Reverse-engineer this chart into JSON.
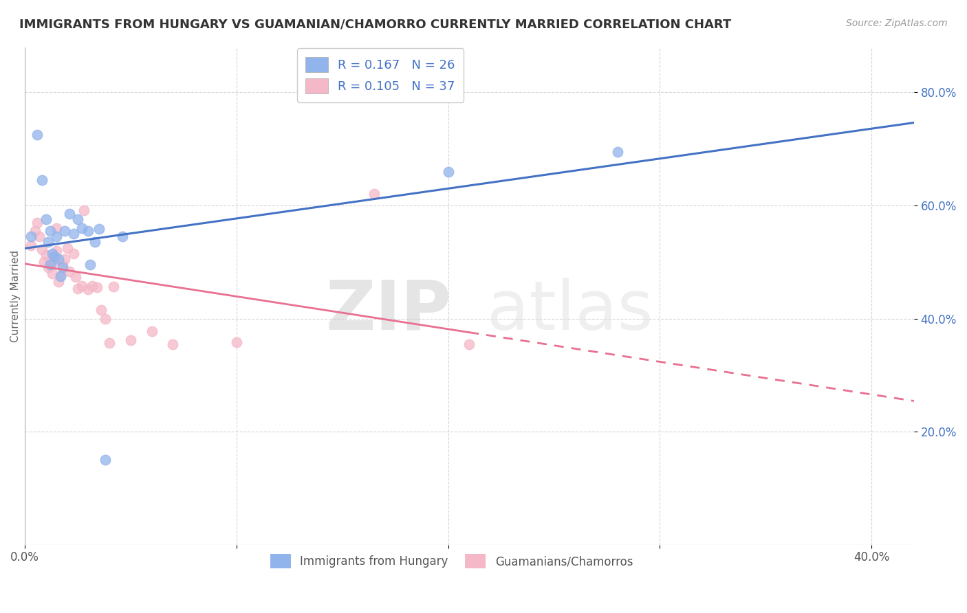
{
  "title": "IMMIGRANTS FROM HUNGARY VS GUAMANIAN/CHAMORRO CURRENTLY MARRIED CORRELATION CHART",
  "source": "Source: ZipAtlas.com",
  "ylabel": "Currently Married",
  "xlim": [
    0.0,
    0.42
  ],
  "ylim": [
    0.0,
    0.88
  ],
  "x_tick_labels": [
    "0.0%",
    "",
    "",
    "",
    "40.0%"
  ],
  "x_tick_values": [
    0.0,
    0.1,
    0.2,
    0.3,
    0.4
  ],
  "y_tick_labels": [
    "20.0%",
    "40.0%",
    "60.0%",
    "80.0%"
  ],
  "y_tick_values": [
    0.2,
    0.4,
    0.6,
    0.8
  ],
  "blue_color": "#92B4EC",
  "pink_color": "#F4B8C8",
  "blue_line_color": "#4472C4",
  "pink_line_color": "#E87090",
  "blue_scatter": [
    [
      0.003,
      0.545
    ],
    [
      0.006,
      0.725
    ],
    [
      0.008,
      0.645
    ],
    [
      0.01,
      0.575
    ],
    [
      0.011,
      0.535
    ],
    [
      0.012,
      0.555
    ],
    [
      0.012,
      0.495
    ],
    [
      0.013,
      0.515
    ],
    [
      0.014,
      0.51
    ],
    [
      0.015,
      0.545
    ],
    [
      0.016,
      0.505
    ],
    [
      0.017,
      0.475
    ],
    [
      0.018,
      0.49
    ],
    [
      0.019,
      0.555
    ],
    [
      0.021,
      0.585
    ],
    [
      0.023,
      0.55
    ],
    [
      0.025,
      0.575
    ],
    [
      0.027,
      0.56
    ],
    [
      0.03,
      0.555
    ],
    [
      0.031,
      0.495
    ],
    [
      0.033,
      0.535
    ],
    [
      0.035,
      0.558
    ],
    [
      0.038,
      0.15
    ],
    [
      0.046,
      0.545
    ],
    [
      0.2,
      0.66
    ],
    [
      0.28,
      0.695
    ]
  ],
  "pink_scatter": [
    [
      0.003,
      0.53
    ],
    [
      0.005,
      0.555
    ],
    [
      0.006,
      0.57
    ],
    [
      0.007,
      0.545
    ],
    [
      0.008,
      0.522
    ],
    [
      0.009,
      0.5
    ],
    [
      0.01,
      0.513
    ],
    [
      0.011,
      0.49
    ],
    [
      0.012,
      0.502
    ],
    [
      0.013,
      0.48
    ],
    [
      0.014,
      0.5
    ],
    [
      0.015,
      0.52
    ],
    [
      0.015,
      0.56
    ],
    [
      0.016,
      0.465
    ],
    [
      0.017,
      0.476
    ],
    [
      0.018,
      0.495
    ],
    [
      0.019,
      0.505
    ],
    [
      0.02,
      0.525
    ],
    [
      0.021,
      0.483
    ],
    [
      0.023,
      0.515
    ],
    [
      0.024,
      0.474
    ],
    [
      0.025,
      0.453
    ],
    [
      0.027,
      0.458
    ],
    [
      0.028,
      0.592
    ],
    [
      0.03,
      0.452
    ],
    [
      0.032,
      0.458
    ],
    [
      0.034,
      0.455
    ],
    [
      0.036,
      0.415
    ],
    [
      0.038,
      0.4
    ],
    [
      0.04,
      0.357
    ],
    [
      0.042,
      0.456
    ],
    [
      0.05,
      0.362
    ],
    [
      0.06,
      0.378
    ],
    [
      0.07,
      0.355
    ],
    [
      0.1,
      0.358
    ],
    [
      0.165,
      0.62
    ],
    [
      0.21,
      0.355
    ]
  ],
  "watermark_zip": "ZIP",
  "watermark_atlas": "atlas",
  "title_fontsize": 13,
  "axis_label_fontsize": 11,
  "tick_fontsize": 12,
  "source_fontsize": 10,
  "legend_fontsize": 13
}
